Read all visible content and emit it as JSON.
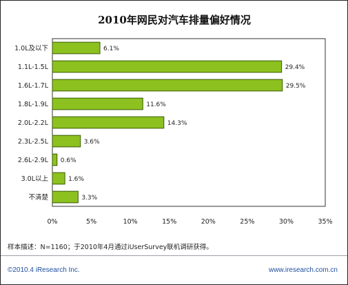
{
  "chart_data": {
    "type": "bar",
    "orientation": "horizontal",
    "title": "2010年网民对汽车排量偏好情况",
    "categories": [
      "1.0L及以下",
      "1.1L-1.5L",
      "1.6L-1.7L",
      "1.8L-1.9L",
      "2.0L-2.2L",
      "2.3L-2.5L",
      "2.6L-2.9L",
      "3.0L以上",
      "不清楚"
    ],
    "values": [
      6.1,
      29.4,
      29.5,
      11.6,
      14.3,
      3.6,
      0.6,
      1.6,
      3.3
    ],
    "value_labels": [
      "6.1%",
      "29.4%",
      "29.5%",
      "11.6%",
      "14.3%",
      "3.6%",
      "0.6%",
      "1.6%",
      "3.3%"
    ],
    "xlim": [
      0,
      35
    ],
    "x_ticks": [
      0,
      5,
      10,
      15,
      20,
      25,
      30,
      35
    ],
    "x_tick_labels": [
      "0%",
      "5%",
      "10%",
      "15%",
      "20%",
      "25%",
      "30%",
      "35%"
    ],
    "bar_color": "#8cc11f",
    "bar_edge_color": "#3a5a06",
    "grid": false,
    "legend": "none"
  },
  "note": "样本描述：N=1160；于2010年4月通过iUserSurvey联机调研获得。",
  "footer": {
    "copyright": "©2010.4  iResearch Inc.",
    "website": "www.iresearch.com.cn"
  }
}
